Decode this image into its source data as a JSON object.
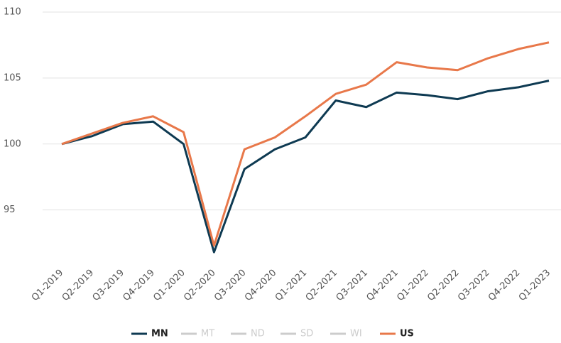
{
  "chart_data": {
    "type": "line",
    "categories": [
      "Q1-2019",
      "Q2-2019",
      "Q3-2019",
      "Q4-2019",
      "Q1-2020",
      "Q2-2020",
      "Q3-2020",
      "Q4-2020",
      "Q1-2021",
      "Q2-2021",
      "Q3-2021",
      "Q4-2021",
      "Q1-2022",
      "Q2-2022",
      "Q3-2022",
      "Q4-2022",
      "Q1-2023"
    ],
    "series": [
      {
        "name": "MN",
        "color": "#0e3a52",
        "visible": true,
        "values": [
          100,
          100.6,
          101.5,
          101.7,
          100,
          91.8,
          98.1,
          99.6,
          100.5,
          103.3,
          102.8,
          103.9,
          103.7,
          103.4,
          104,
          104.3,
          104.8
        ]
      },
      {
        "name": "MT",
        "color": "#cccccc",
        "visible": false,
        "values": [
          null,
          null,
          null,
          null,
          null,
          null,
          null,
          null,
          null,
          null,
          null,
          null,
          null,
          null,
          null,
          null,
          null
        ]
      },
      {
        "name": "ND",
        "color": "#cccccc",
        "visible": false,
        "values": [
          null,
          null,
          null,
          null,
          null,
          null,
          null,
          null,
          null,
          null,
          null,
          null,
          null,
          null,
          null,
          null,
          null
        ]
      },
      {
        "name": "SD",
        "color": "#cccccc",
        "visible": false,
        "values": [
          null,
          null,
          null,
          null,
          null,
          null,
          null,
          null,
          null,
          null,
          null,
          null,
          null,
          null,
          null,
          null,
          null
        ]
      },
      {
        "name": "WI",
        "color": "#cccccc",
        "visible": false,
        "values": [
          null,
          null,
          null,
          null,
          null,
          null,
          null,
          null,
          null,
          null,
          null,
          null,
          null,
          null,
          null,
          null,
          null
        ]
      },
      {
        "name": "US",
        "color": "#e8784a",
        "visible": true,
        "values": [
          100,
          100.8,
          101.6,
          102.1,
          100.9,
          92.3,
          99.6,
          100.5,
          102.1,
          103.8,
          104.5,
          106.2,
          105.8,
          105.6,
          106.5,
          107.2,
          107.7
        ]
      }
    ],
    "ylim": [
      91,
      110
    ],
    "yticks": [
      95,
      100,
      105,
      110
    ],
    "grid": true,
    "legend": "bottom"
  }
}
